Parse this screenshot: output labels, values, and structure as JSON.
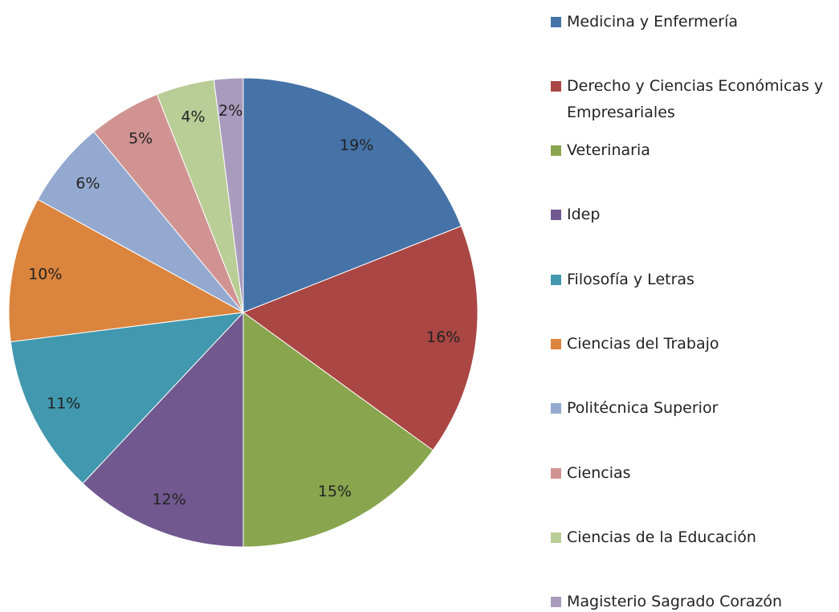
{
  "chart_data": {
    "type": "pie",
    "categories": [
      "Medicina y Enfermería",
      "Derecho y Ciencias Económicas y Empresariales",
      "Veterinaria",
      "Idep",
      "Filosofía y Letras",
      "Ciencias del Trabajo",
      "Politécnica Superior",
      "Ciencias",
      "Ciencias de la Educación",
      "Magisterio Sagrado Corazón"
    ],
    "values": [
      19,
      16,
      15,
      12,
      11,
      10,
      6,
      5,
      4,
      2
    ],
    "value_labels": [
      "19%",
      "16%",
      "15%",
      "12%",
      "11%",
      "10%",
      "6%",
      "5%",
      "4%",
      "2%"
    ],
    "colors": [
      "#4572a7",
      "#aa4643",
      "#89a54e",
      "#71588f",
      "#4198af",
      "#db843d",
      "#93a9cf",
      "#d19392",
      "#b9cd96",
      "#a99bbd"
    ],
    "legend": "right"
  }
}
